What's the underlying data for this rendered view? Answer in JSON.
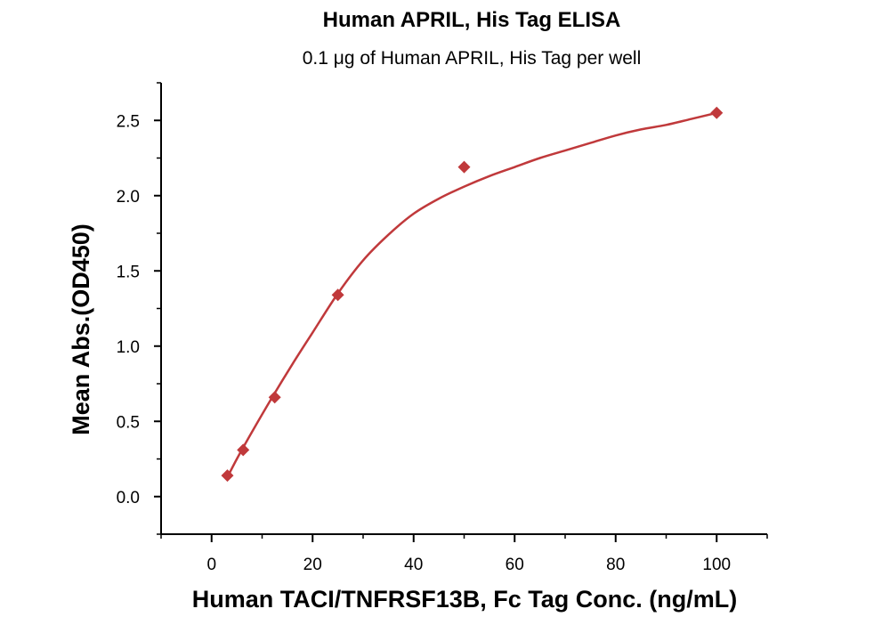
{
  "chart_data": {
    "type": "scatter",
    "title": "Human APRIL, His Tag ELISA",
    "subtitle": "0.1 μg of Human APRIL, His Tag per well",
    "xlabel": "Human TACI/TNFRSF13B, Fc Tag Conc. (ng/mL)",
    "ylabel": "Mean Abs.(OD450)",
    "xlim": [
      -10,
      110
    ],
    "ylim": [
      -0.25,
      2.75
    ],
    "x_ticks": [
      0,
      20,
      40,
      60,
      80,
      100
    ],
    "x_tick_labels": [
      "0",
      "20",
      "40",
      "60",
      "80",
      "100"
    ],
    "y_ticks": [
      0.0,
      0.5,
      1.0,
      1.5,
      2.0,
      2.5
    ],
    "y_tick_labels": [
      "0.0",
      "0.5",
      "1.0",
      "1.5",
      "2.0",
      "2.5"
    ],
    "grid": false,
    "colors": {
      "series": "#c0393b"
    },
    "series": [
      {
        "marker": "diamond",
        "x": [
          3.125,
          6.25,
          12.5,
          25,
          50,
          100
        ],
        "y": [
          0.14,
          0.31,
          0.66,
          1.34,
          2.19,
          2.55
        ]
      }
    ],
    "fit_curve": {
      "x": [
        3,
        5,
        8,
        12,
        16,
        20,
        25,
        30,
        35,
        40,
        45,
        50,
        55,
        60,
        65,
        70,
        75,
        80,
        85,
        90,
        95,
        100
      ],
      "y": [
        0.12,
        0.25,
        0.43,
        0.66,
        0.88,
        1.09,
        1.35,
        1.57,
        1.74,
        1.88,
        1.98,
        2.06,
        2.13,
        2.19,
        2.25,
        2.3,
        2.35,
        2.4,
        2.44,
        2.47,
        2.51,
        2.55
      ]
    }
  }
}
